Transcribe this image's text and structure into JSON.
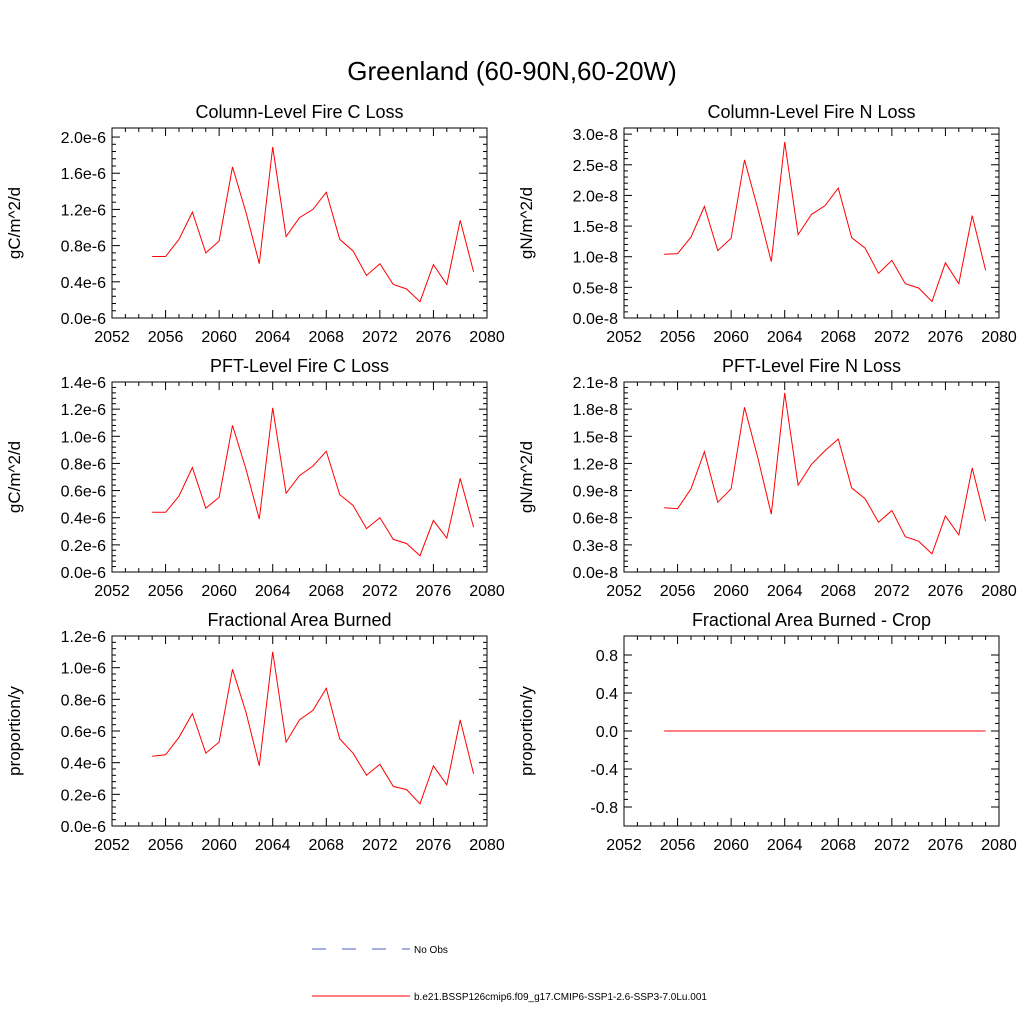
{
  "figure": {
    "title": "Greenland (60-90N,60-20W)"
  },
  "legend": {
    "items": [
      {
        "label": "No Obs",
        "color": "#4a5fc1",
        "style": "dashed"
      },
      {
        "label": "b.e21.BSSP126cmip6.f09_g17.CMIP6-SSP1-2.6-SSP3-7.0Lu.001",
        "color": "#ff0000",
        "style": "solid"
      }
    ]
  },
  "chart_data": [
    {
      "type": "line",
      "title": "Column-Level Fire C Loss",
      "ylabel": "gC/m^2/d",
      "xlabel": "",
      "xlim": [
        2052,
        2080
      ],
      "ylim": [
        0,
        2.1e-06
      ],
      "x_ticks": [
        2052,
        2056,
        2060,
        2064,
        2068,
        2072,
        2076,
        2080
      ],
      "y_ticks": [
        0,
        4e-07,
        8e-07,
        1.2e-06,
        1.6e-06,
        2e-06
      ],
      "y_tick_labels": [
        "0.0e-6",
        "0.4e-6",
        "0.8e-6",
        "1.2e-6",
        "1.6e-6",
        "2.0e-6"
      ],
      "series": [
        {
          "color": "#ff0000",
          "x": [
            2055,
            2056,
            2057,
            2058,
            2059,
            2060,
            2061,
            2062,
            2063,
            2064,
            2065,
            2066,
            2067,
            2068,
            2069,
            2070,
            2071,
            2072,
            2073,
            2074,
            2075,
            2076,
            2077,
            2078,
            2079
          ],
          "y": [
            6.8e-07,
            6.8e-07,
            8.7e-07,
            1.17e-06,
            7.2e-07,
            8.5e-07,
            1.67e-06,
            1.17e-06,
            6e-07,
            1.89e-06,
            9e-07,
            1.11e-06,
            1.2e-06,
            1.39e-06,
            8.7e-07,
            7.4e-07,
            4.7e-07,
            6e-07,
            3.7e-07,
            3.2e-07,
            1.8e-07,
            5.9e-07,
            3.7e-07,
            1.08e-06,
            5.1e-07
          ]
        }
      ]
    },
    {
      "type": "line",
      "title": "Column-Level Fire N Loss",
      "ylabel": "gN/m^2/d",
      "xlabel": "",
      "xlim": [
        2052,
        2080
      ],
      "ylim": [
        0,
        3.1e-08
      ],
      "x_ticks": [
        2052,
        2056,
        2060,
        2064,
        2068,
        2072,
        2076,
        2080
      ],
      "y_ticks": [
        0,
        5e-09,
        1e-08,
        1.5e-08,
        2e-08,
        2.5e-08,
        3e-08
      ],
      "y_tick_labels": [
        "0.0e-8",
        "0.5e-8",
        "1.0e-8",
        "1.5e-8",
        "2.0e-8",
        "2.5e-8",
        "3.0e-8"
      ],
      "series": [
        {
          "color": "#ff0000",
          "x": [
            2055,
            2056,
            2057,
            2058,
            2059,
            2060,
            2061,
            2062,
            2063,
            2064,
            2065,
            2066,
            2067,
            2068,
            2069,
            2070,
            2071,
            2072,
            2073,
            2074,
            2075,
            2076,
            2077,
            2078,
            2079
          ],
          "y": [
            1.04e-08,
            1.05e-08,
            1.32e-08,
            1.82e-08,
            1.1e-08,
            1.3e-08,
            2.58e-08,
            1.78e-08,
            9.2e-09,
            2.87e-08,
            1.36e-08,
            1.69e-08,
            1.83e-08,
            2.12e-08,
            1.31e-08,
            1.14e-08,
            7.3e-09,
            9.4e-09,
            5.6e-09,
            4.9e-09,
            2.7e-09,
            9e-09,
            5.6e-09,
            1.67e-08,
            7.8e-09
          ]
        }
      ]
    },
    {
      "type": "line",
      "title": "PFT-Level Fire C Loss",
      "ylabel": "gC/m^2/d",
      "xlabel": "",
      "xlim": [
        2052,
        2080
      ],
      "ylim": [
        0,
        1.4e-06
      ],
      "x_ticks": [
        2052,
        2056,
        2060,
        2064,
        2068,
        2072,
        2076,
        2080
      ],
      "y_ticks": [
        0,
        2e-07,
        4e-07,
        6e-07,
        8e-07,
        1e-06,
        1.2e-06,
        1.4e-06
      ],
      "y_tick_labels": [
        "0.0e-6",
        "0.2e-6",
        "0.4e-6",
        "0.6e-6",
        "0.8e-6",
        "1.0e-6",
        "1.2e-6",
        "1.4e-6"
      ],
      "series": [
        {
          "color": "#ff0000",
          "x": [
            2055,
            2056,
            2057,
            2058,
            2059,
            2060,
            2061,
            2062,
            2063,
            2064,
            2065,
            2066,
            2067,
            2068,
            2069,
            2070,
            2071,
            2072,
            2073,
            2074,
            2075,
            2076,
            2077,
            2078,
            2079
          ],
          "y": [
            4.4e-07,
            4.4e-07,
            5.6e-07,
            7.7e-07,
            4.7e-07,
            5.5e-07,
            1.08e-06,
            7.6e-07,
            3.9e-07,
            1.21e-06,
            5.8e-07,
            7.1e-07,
            7.8e-07,
            8.9e-07,
            5.7e-07,
            4.9e-07,
            3.2e-07,
            4e-07,
            2.4e-07,
            2.1e-07,
            1.2e-07,
            3.8e-07,
            2.5e-07,
            6.9e-07,
            3.3e-07
          ]
        }
      ]
    },
    {
      "type": "line",
      "title": "PFT-Level Fire N Loss",
      "ylabel": "gN/m^2/d",
      "xlabel": "",
      "xlim": [
        2052,
        2080
      ],
      "ylim": [
        0,
        2.1e-08
      ],
      "x_ticks": [
        2052,
        2056,
        2060,
        2064,
        2068,
        2072,
        2076,
        2080
      ],
      "y_ticks": [
        0,
        3e-09,
        6e-09,
        9e-09,
        1.2e-08,
        1.5e-08,
        1.8e-08,
        2.1e-08
      ],
      "y_tick_labels": [
        "0.0e-8",
        "0.3e-8",
        "0.6e-8",
        "0.9e-8",
        "1.2e-8",
        "1.5e-8",
        "1.8e-8",
        "2.1e-8"
      ],
      "series": [
        {
          "color": "#ff0000",
          "x": [
            2055,
            2056,
            2057,
            2058,
            2059,
            2060,
            2061,
            2062,
            2063,
            2064,
            2065,
            2066,
            2067,
            2068,
            2069,
            2070,
            2071,
            2072,
            2073,
            2074,
            2075,
            2076,
            2077,
            2078,
            2079
          ],
          "y": [
            7.1e-09,
            7e-09,
            9.2e-09,
            1.33e-08,
            7.7e-09,
            9.2e-09,
            1.82e-08,
            1.26e-08,
            6.4e-09,
            1.98e-08,
            9.6e-09,
            1.19e-08,
            1.34e-08,
            1.47e-08,
            9.3e-09,
            8.1e-09,
            5.5e-09,
            6.8e-09,
            3.9e-09,
            3.4e-09,
            2e-09,
            6.2e-09,
            4.1e-09,
            1.15e-08,
            5.6e-09
          ]
        }
      ]
    },
    {
      "type": "line",
      "title": "Fractional Area Burned",
      "ylabel": "proportion/y",
      "xlabel": "",
      "xlim": [
        2052,
        2080
      ],
      "ylim": [
        0,
        1.2e-06
      ],
      "x_ticks": [
        2052,
        2056,
        2060,
        2064,
        2068,
        2072,
        2076,
        2080
      ],
      "y_ticks": [
        0,
        2e-07,
        4e-07,
        6e-07,
        8e-07,
        1e-06,
        1.2e-06
      ],
      "y_tick_labels": [
        "0.0e-6",
        "0.2e-6",
        "0.4e-6",
        "0.6e-6",
        "0.8e-6",
        "1.0e-6",
        "1.2e-6"
      ],
      "series": [
        {
          "color": "#ff0000",
          "x": [
            2055,
            2056,
            2057,
            2058,
            2059,
            2060,
            2061,
            2062,
            2063,
            2064,
            2065,
            2066,
            2067,
            2068,
            2069,
            2070,
            2071,
            2072,
            2073,
            2074,
            2075,
            2076,
            2077,
            2078,
            2079
          ],
          "y": [
            4.4e-07,
            4.5e-07,
            5.6e-07,
            7.1e-07,
            4.6e-07,
            5.3e-07,
            9.9e-07,
            7.2e-07,
            3.8e-07,
            1.1e-06,
            5.3e-07,
            6.7e-07,
            7.3e-07,
            8.7e-07,
            5.5e-07,
            4.6e-07,
            3.2e-07,
            3.9e-07,
            2.5e-07,
            2.3e-07,
            1.4e-07,
            3.8e-07,
            2.6e-07,
            6.7e-07,
            3.3e-07
          ]
        }
      ]
    },
    {
      "type": "line",
      "title": "Fractional Area Burned - Crop",
      "ylabel": "proportion/y",
      "xlabel": "",
      "xlim": [
        2052,
        2080
      ],
      "ylim": [
        -1,
        1
      ],
      "x_ticks": [
        2052,
        2056,
        2060,
        2064,
        2068,
        2072,
        2076,
        2080
      ],
      "y_ticks": [
        -0.8,
        -0.4,
        0,
        0.4,
        0.8
      ],
      "y_tick_labels": [
        "-0.8",
        "-0.4",
        "0.0",
        "0.4",
        "0.8"
      ],
      "series": [
        {
          "color": "#ff0000",
          "x": [
            2055,
            2056,
            2057,
            2058,
            2059,
            2060,
            2061,
            2062,
            2063,
            2064,
            2065,
            2066,
            2067,
            2068,
            2069,
            2070,
            2071,
            2072,
            2073,
            2074,
            2075,
            2076,
            2077,
            2078,
            2079
          ],
          "y": [
            0,
            0,
            0,
            0,
            0,
            0,
            0,
            0,
            0,
            0,
            0,
            0,
            0,
            0,
            0,
            0,
            0,
            0,
            0,
            0,
            0,
            0,
            0,
            0,
            0
          ]
        }
      ]
    }
  ]
}
